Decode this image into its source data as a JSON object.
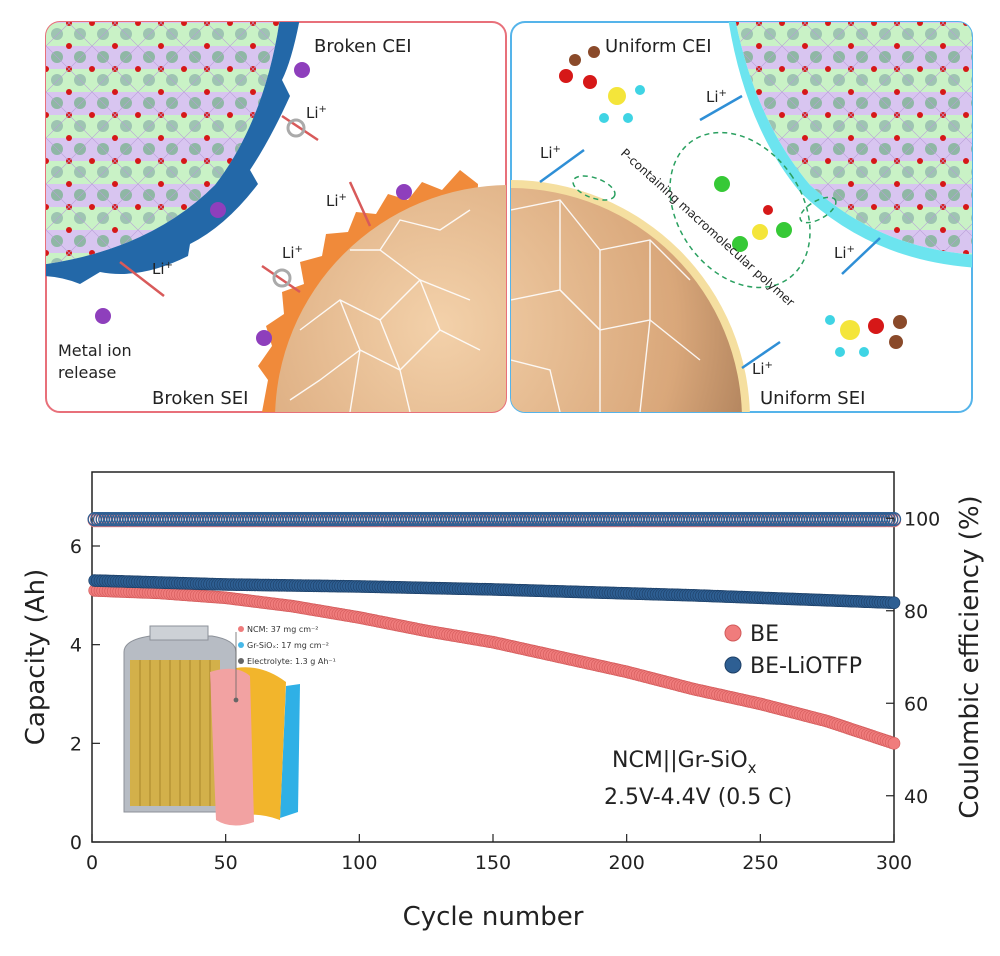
{
  "schematic": {
    "left_panel": {
      "border_color": "#e8707a",
      "labels": {
        "cei": "Broken CEI",
        "sei": "Broken SEI",
        "release": [
          "Metal ion",
          "release"
        ],
        "li": "Li"
      }
    },
    "right_panel": {
      "border_color": "#55b4ea",
      "labels": {
        "cei": "Uniform CEI",
        "sei": "Uniform SEI",
        "polymer": "P-containing macromolecular polymer",
        "li": "Li"
      }
    },
    "li_superscript": "+"
  },
  "chart_data": {
    "type": "scatter",
    "xlabel": "Cycle number",
    "ylabel": "Capacity (Ah)",
    "y2label": "Coulombic efficiency (%)",
    "xlim": [
      0,
      300
    ],
    "ylim": [
      0,
      7.5
    ],
    "y2lim": [
      30,
      110
    ],
    "xticks": [
      0,
      50,
      100,
      150,
      200,
      250,
      300
    ],
    "yticks": [
      0,
      2,
      4,
      6
    ],
    "y2ticks": [
      40,
      60,
      80,
      100
    ],
    "legend_position": "right-middle",
    "series": [
      {
        "name": "BE",
        "axis": "left",
        "color": "#f07c7c",
        "x": [
          1,
          10,
          25,
          50,
          75,
          100,
          125,
          150,
          175,
          200,
          225,
          250,
          275,
          300
        ],
        "values": [
          5.1,
          5.08,
          5.05,
          4.95,
          4.78,
          4.55,
          4.28,
          4.05,
          3.75,
          3.45,
          3.1,
          2.8,
          2.45,
          2.0
        ]
      },
      {
        "name": "BE-LiOTFP",
        "axis": "left",
        "color": "#2e5f93",
        "x": [
          1,
          25,
          50,
          75,
          100,
          125,
          150,
          175,
          200,
          225,
          250,
          275,
          300
        ],
        "values": [
          5.3,
          5.26,
          5.22,
          5.2,
          5.18,
          5.15,
          5.12,
          5.08,
          5.04,
          5.0,
          4.95,
          4.9,
          4.85
        ]
      },
      {
        "name": "BE",
        "axis": "right",
        "color": "#f07c7c",
        "x": [
          1,
          300
        ],
        "values": [
          99.6,
          99.6
        ]
      },
      {
        "name": "BE-LiOTFP",
        "axis": "right",
        "color": "#2e5f93",
        "x": [
          1,
          300
        ],
        "values": [
          99.8,
          99.8
        ]
      }
    ],
    "annotations": {
      "cell_line1": "NCM||Gr-SiO",
      "cell_line1_sub": "x",
      "cell_line2": "2.5V-4.4V (0.5 C)"
    },
    "inset": {
      "items": [
        {
          "text": "NCM: 37 mg cm⁻²",
          "color": "#ef7b7b"
        },
        {
          "text": "Gr-SiOₓ: 17 mg cm⁻²",
          "color": "#47b8e8"
        },
        {
          "text": "Electrolyte: 1.3 g Ah⁻¹",
          "color": "#666666"
        }
      ]
    }
  }
}
